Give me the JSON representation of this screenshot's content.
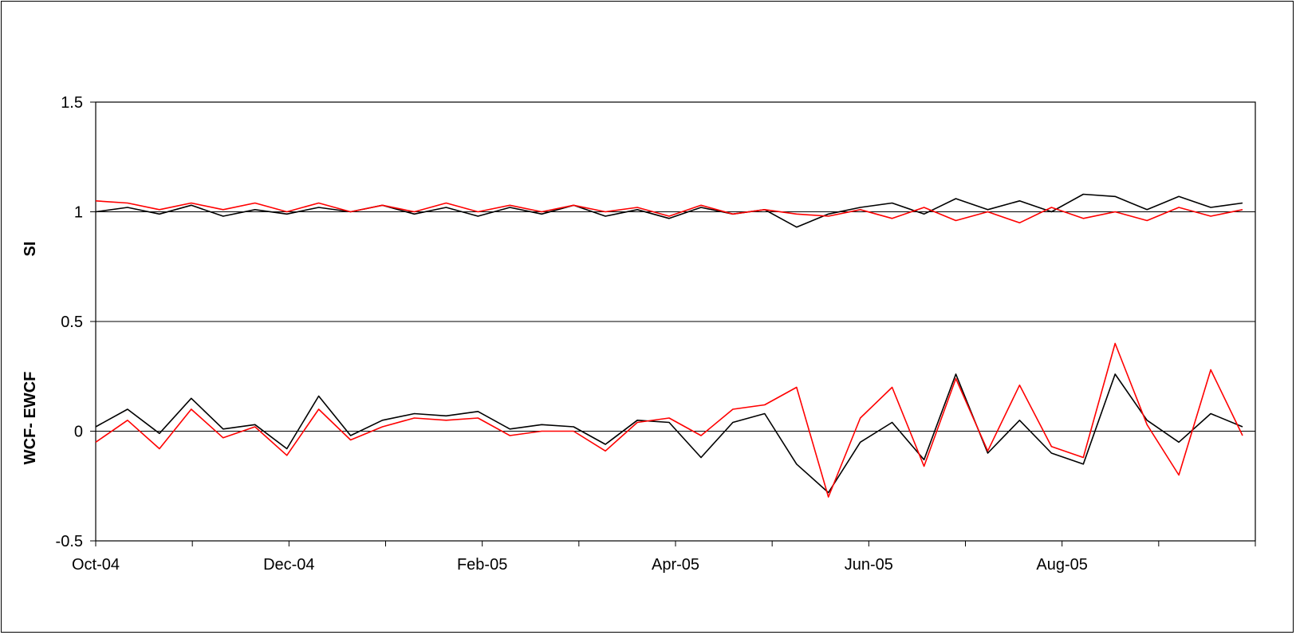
{
  "chart_data": {
    "type": "line",
    "title": "",
    "xlabel": "",
    "ylabel_upper": "SI",
    "ylabel_lower": "WCF- EWCF",
    "ylim": [
      -0.5,
      1.5
    ],
    "yticks": [
      -0.5,
      0,
      0.5,
      1,
      1.5
    ],
    "ytick_labels": [
      "-0.5",
      "0",
      "0.5",
      "1",
      "1.5"
    ],
    "x_range": [
      "2004-10-01",
      "2005-09-30"
    ],
    "xtick_labels": [
      "Oct-04",
      "Dec-04",
      "Feb-05",
      "Apr-05",
      "Jun-05",
      "Aug-05"
    ],
    "reference_lines": [
      0,
      0.5,
      1
    ],
    "legend": "none",
    "series": [
      {
        "color": "#000000",
        "x": [
          "2004-10-01",
          "2004-10-11",
          "2004-10-21",
          "2004-10-31",
          "2004-11-10",
          "2004-11-20",
          "2004-11-30",
          "2004-12-10",
          "2004-12-20",
          "2004-12-30",
          "2005-01-09",
          "2005-01-19",
          "2005-01-29",
          "2005-02-08",
          "2005-02-18",
          "2005-02-28",
          "2005-03-10",
          "2005-03-20",
          "2005-03-30",
          "2005-04-09",
          "2005-04-19",
          "2005-04-29",
          "2005-05-09",
          "2005-05-19",
          "2005-05-29",
          "2005-06-08",
          "2005-06-18",
          "2005-06-28",
          "2005-07-08",
          "2005-07-18",
          "2005-07-28",
          "2005-08-07",
          "2005-08-17",
          "2005-08-27",
          "2005-09-06",
          "2005-09-16",
          "2005-09-26"
        ],
        "values": [
          1.0,
          1.02,
          0.99,
          1.03,
          0.98,
          1.01,
          0.99,
          1.02,
          1.0,
          1.03,
          0.99,
          1.02,
          0.98,
          1.02,
          0.99,
          1.03,
          0.98,
          1.01,
          0.97,
          1.02,
          0.99,
          1.01,
          0.93,
          0.99,
          1.02,
          1.04,
          0.99,
          1.06,
          1.01,
          1.05,
          1.0,
          1.08,
          1.07,
          1.01,
          1.07,
          1.02,
          1.04
        ]
      },
      {
        "color": "#ff0000",
        "x": [
          "2004-10-01",
          "2004-10-11",
          "2004-10-21",
          "2004-10-31",
          "2004-11-10",
          "2004-11-20",
          "2004-11-30",
          "2004-12-10",
          "2004-12-20",
          "2004-12-30",
          "2005-01-09",
          "2005-01-19",
          "2005-01-29",
          "2005-02-08",
          "2005-02-18",
          "2005-02-28",
          "2005-03-10",
          "2005-03-20",
          "2005-03-30",
          "2005-04-09",
          "2005-04-19",
          "2005-04-29",
          "2005-05-09",
          "2005-05-19",
          "2005-05-29",
          "2005-06-08",
          "2005-06-18",
          "2005-06-28",
          "2005-07-08",
          "2005-07-18",
          "2005-07-28",
          "2005-08-07",
          "2005-08-17",
          "2005-08-27",
          "2005-09-06",
          "2005-09-16",
          "2005-09-26"
        ],
        "values": [
          1.05,
          1.04,
          1.01,
          1.04,
          1.01,
          1.04,
          1.0,
          1.04,
          1.0,
          1.03,
          1.0,
          1.04,
          1.0,
          1.03,
          1.0,
          1.03,
          1.0,
          1.02,
          0.98,
          1.03,
          0.99,
          1.01,
          0.99,
          0.98,
          1.01,
          0.97,
          1.02,
          0.96,
          1.0,
          0.95,
          1.02,
          0.97,
          1.0,
          0.96,
          1.02,
          0.98,
          1.01
        ]
      },
      {
        "color": "#000000",
        "x": [
          "2004-10-01",
          "2004-10-11",
          "2004-10-21",
          "2004-10-31",
          "2004-11-10",
          "2004-11-20",
          "2004-11-30",
          "2004-12-10",
          "2004-12-20",
          "2004-12-30",
          "2005-01-09",
          "2005-01-19",
          "2005-01-29",
          "2005-02-08",
          "2005-02-18",
          "2005-02-28",
          "2005-03-10",
          "2005-03-20",
          "2005-03-30",
          "2005-04-09",
          "2005-04-19",
          "2005-04-29",
          "2005-05-09",
          "2005-05-19",
          "2005-05-29",
          "2005-06-08",
          "2005-06-18",
          "2005-06-28",
          "2005-07-08",
          "2005-07-18",
          "2005-07-28",
          "2005-08-07",
          "2005-08-17",
          "2005-08-27",
          "2005-09-06",
          "2005-09-16",
          "2005-09-26"
        ],
        "values": [
          0.02,
          0.1,
          -0.01,
          0.15,
          0.01,
          0.03,
          -0.08,
          0.16,
          -0.02,
          0.05,
          0.08,
          0.07,
          0.09,
          0.01,
          0.03,
          0.02,
          -0.06,
          0.05,
          0.04,
          -0.12,
          0.04,
          0.08,
          -0.15,
          -0.28,
          -0.05,
          0.04,
          -0.13,
          0.26,
          -0.1,
          0.05,
          -0.1,
          -0.15,
          0.26,
          0.05,
          -0.05,
          0.08,
          0.02
        ]
      },
      {
        "color": "#ff0000",
        "x": [
          "2004-10-01",
          "2004-10-11",
          "2004-10-21",
          "2004-10-31",
          "2004-11-10",
          "2004-11-20",
          "2004-11-30",
          "2004-12-10",
          "2004-12-20",
          "2004-12-30",
          "2005-01-09",
          "2005-01-19",
          "2005-01-29",
          "2005-02-08",
          "2005-02-18",
          "2005-02-28",
          "2005-03-10",
          "2005-03-20",
          "2005-03-30",
          "2005-04-09",
          "2005-04-19",
          "2005-04-29",
          "2005-05-09",
          "2005-05-19",
          "2005-05-29",
          "2005-06-08",
          "2005-06-18",
          "2005-06-28",
          "2005-07-08",
          "2005-07-18",
          "2005-07-28",
          "2005-08-07",
          "2005-08-17",
          "2005-08-27",
          "2005-09-06",
          "2005-09-16",
          "2005-09-26"
        ],
        "values": [
          -0.05,
          0.05,
          -0.08,
          0.1,
          -0.03,
          0.02,
          -0.11,
          0.1,
          -0.04,
          0.02,
          0.06,
          0.05,
          0.06,
          -0.02,
          0.0,
          0.0,
          -0.09,
          0.04,
          0.06,
          -0.02,
          0.1,
          0.12,
          0.2,
          -0.3,
          0.06,
          0.2,
          -0.16,
          0.24,
          -0.09,
          0.21,
          -0.07,
          -0.12,
          0.4,
          0.03,
          -0.2,
          0.28,
          -0.02
        ]
      }
    ]
  }
}
